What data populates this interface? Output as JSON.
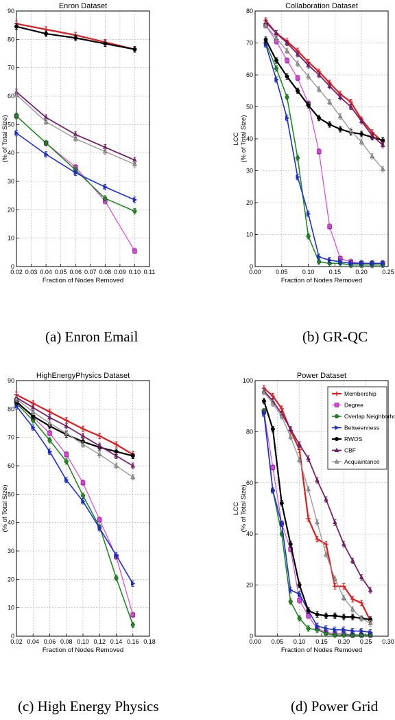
{
  "captions": [
    "(a) Enron Email",
    "(b) GR-QC",
    "(c) High Energy Physics",
    "(d) Power Grid"
  ],
  "colors": {
    "Membership": "#e31a1c",
    "Degree": "#e040e0",
    "Overlap Neighborhood": "#1f8a1f",
    "Betweenness": "#1a2ee0",
    "RWOS": "#000000",
    "CBF": "#7b1f6e",
    "Acquaintance": "#9a9a9a"
  },
  "chart_data": [
    {
      "type": "line",
      "title": "Enron Dataset",
      "xlabel": "Fraction of Nodes Removed",
      "ylabel": "LCC (% of Total Size)",
      "xlim": [
        0.02,
        0.11
      ],
      "ylim": [
        0,
        90
      ],
      "xticks": [
        "0.02",
        "0.03",
        "0.04",
        "0.05",
        "0.06",
        "0.07",
        "0.08",
        "0.09",
        "0.10",
        "0.11"
      ],
      "yticks": [
        "0",
        "10",
        "20",
        "30",
        "40",
        "50",
        "60",
        "70",
        "80",
        "90"
      ],
      "x": [
        0.02,
        0.04,
        0.06,
        0.08,
        0.1
      ],
      "series": [
        {
          "name": "Membership",
          "values": [
            85.5,
            83.5,
            81.5,
            79,
            76.5
          ]
        },
        {
          "name": "Degree",
          "values": [
            53,
            43.5,
            35,
            23,
            5.5
          ]
        },
        {
          "name": "Overlap Neighborhood",
          "values": [
            53,
            43.5,
            34,
            24,
            19.5
          ]
        },
        {
          "name": "Betweenness",
          "values": [
            47,
            39.5,
            33,
            28,
            23.5
          ]
        },
        {
          "name": "RWOS",
          "values": [
            84.5,
            82,
            80.5,
            78.5,
            76.5
          ]
        },
        {
          "name": "CBF",
          "values": [
            61.5,
            52.5,
            46.5,
            42,
            37.5
          ]
        },
        {
          "name": "Acquaintance",
          "values": [
            60.5,
            51,
            45,
            40.5,
            36
          ]
        }
      ]
    },
    {
      "type": "line",
      "title": "Collaboration Dataset",
      "xlabel": "Fraction of Nodes Removed",
      "ylabel": "LCC (% of Total Size)",
      "xlim": [
        0.0,
        0.25
      ],
      "ylim": [
        0,
        80
      ],
      "xticks": [
        "0.00",
        "0.05",
        "0.10",
        "0.15",
        "0.20",
        "0.25"
      ],
      "yticks": [
        "0",
        "10",
        "20",
        "30",
        "40",
        "50",
        "60",
        "70",
        "80"
      ],
      "x": [
        0.02,
        0.04,
        0.06,
        0.08,
        0.1,
        0.12,
        0.14,
        0.16,
        0.18,
        0.2,
        0.22,
        0.24
      ],
      "series": [
        {
          "name": "Membership",
          "values": [
            77,
            73,
            70.5,
            67.5,
            64,
            61,
            57.5,
            54,
            51.5,
            46,
            42,
            39
          ]
        },
        {
          "name": "Degree",
          "values": [
            75.5,
            70.5,
            64.5,
            59,
            51,
            36,
            12.5,
            2.5,
            1.5,
            1,
            1,
            1
          ]
        },
        {
          "name": "Overlap Neighborhood",
          "values": [
            70,
            62,
            53,
            34,
            9.5,
            1.5,
            1,
            1,
            0.5,
            0.5,
            0.5,
            0.5
          ]
        },
        {
          "name": "Betweenness",
          "values": [
            69.5,
            58.5,
            46.5,
            28,
            16.5,
            3,
            2,
            1.5,
            1,
            1,
            1,
            1
          ]
        },
        {
          "name": "RWOS",
          "values": [
            71,
            64.5,
            59.5,
            55,
            50.5,
            46.5,
            44.5,
            43,
            42,
            41.5,
            40.5,
            39.5
          ]
        },
        {
          "name": "CBF",
          "values": [
            76.5,
            73,
            70,
            66.5,
            63,
            60,
            56.5,
            53,
            50,
            45.5,
            41,
            38
          ]
        },
        {
          "name": "Acquaintance",
          "values": [
            75.5,
            71.5,
            67.5,
            63.5,
            59.5,
            55.5,
            51.5,
            47,
            42.5,
            39,
            34.5,
            30.5
          ]
        }
      ]
    },
    {
      "type": "line",
      "title": "HighEnergyPhysics Dataset",
      "xlabel": "Fraction of Nodes Removed",
      "ylabel": "LCC (% of Total Size)",
      "xlim": [
        0.02,
        0.18
      ],
      "ylim": [
        0,
        90
      ],
      "xticks": [
        "0.02",
        "0.04",
        "0.06",
        "0.08",
        "0.10",
        "0.12",
        "0.14",
        "0.16",
        "0.18"
      ],
      "yticks": [
        "0",
        "10",
        "20",
        "30",
        "40",
        "50",
        "60",
        "70",
        "80",
        "90"
      ],
      "x": [
        0.02,
        0.04,
        0.06,
        0.08,
        0.1,
        0.12,
        0.14,
        0.16
      ],
      "series": [
        {
          "name": "Membership",
          "values": [
            85,
            82,
            79,
            76,
            73,
            70.5,
            67.5,
            64
          ]
        },
        {
          "name": "Degree",
          "values": [
            83,
            77,
            71.5,
            64,
            54,
            41,
            28,
            7.5
          ]
        },
        {
          "name": "Overlap Neighborhood",
          "values": [
            82,
            76,
            69,
            61.5,
            49.5,
            38.5,
            20.5,
            4
          ]
        },
        {
          "name": "Betweenness",
          "values": [
            81,
            73.5,
            65,
            55,
            47.5,
            38,
            28.5,
            18.5
          ]
        },
        {
          "name": "RWOS",
          "values": [
            82.5,
            77.5,
            74,
            71,
            68.5,
            66.5,
            65,
            63.5
          ]
        },
        {
          "name": "CBF",
          "values": [
            84,
            80.5,
            77,
            74,
            70.5,
            67,
            63.5,
            60
          ]
        },
        {
          "name": "Acquaintance",
          "values": [
            83.5,
            79,
            75,
            71.5,
            67.5,
            64,
            60,
            56
          ]
        }
      ]
    },
    {
      "type": "line",
      "title": "Power Dataset",
      "xlabel": "Fraction of Nodes Removed",
      "ylabel": "LCC (% of Total Size)",
      "xlim": [
        0.0,
        0.3
      ],
      "ylim": [
        0,
        100
      ],
      "xticks": [
        "0.00",
        "0.05",
        "0.10",
        "0.15",
        "0.20",
        "0.25",
        "0.30"
      ],
      "yticks": [
        "0",
        "20",
        "40",
        "60",
        "80",
        "100"
      ],
      "x": [
        0.02,
        0.04,
        0.06,
        0.08,
        0.1,
        0.12,
        0.14,
        0.16,
        0.18,
        0.2,
        0.22,
        0.24,
        0.26
      ],
      "legend": "top-right",
      "series": [
        {
          "name": "Membership",
          "values": [
            97,
            94,
            89,
            80.5,
            73,
            46,
            38,
            36,
            19.5,
            19.5,
            14.5,
            13,
            6
          ]
        },
        {
          "name": "Degree",
          "values": [
            88,
            66,
            44,
            34,
            14,
            8,
            3,
            1.5,
            1,
            1,
            0.5,
            0.5,
            0.5
          ]
        },
        {
          "name": "Overlap Neighborhood",
          "values": [
            88,
            57,
            40,
            13.5,
            7,
            3,
            2.5,
            1,
            0.5,
            0.5,
            0.5,
            0.5,
            0.5
          ]
        },
        {
          "name": "Betweenness",
          "values": [
            87,
            57,
            44,
            18,
            16.5,
            10,
            4,
            3,
            2.5,
            2.5,
            2,
            2,
            1.5
          ]
        },
        {
          "name": "RWOS",
          "values": [
            92,
            81,
            52,
            36,
            20,
            10,
            8.5,
            8,
            8,
            7.5,
            7.5,
            7,
            6.5
          ]
        },
        {
          "name": "CBF",
          "values": [
            96,
            92,
            87,
            81,
            75,
            69.5,
            61,
            53.5,
            44.5,
            36,
            29.5,
            23,
            18
          ]
        },
        {
          "name": "Acquaintance",
          "values": [
            95.5,
            91,
            86,
            78,
            69,
            57.5,
            44.5,
            32,
            22.5,
            15,
            10.5,
            7,
            5
          ]
        }
      ]
    }
  ]
}
